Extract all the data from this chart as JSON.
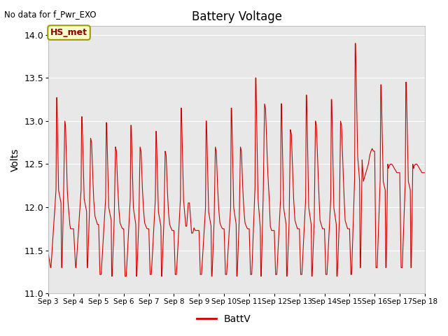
{
  "title": "Battery Voltage",
  "ylabel": "Volts",
  "top_left_text": "No data for f_Pwr_EXO",
  "legend_label": "BattV",
  "ylim": [
    11.0,
    14.1
  ],
  "yticks": [
    11.0,
    11.5,
    12.0,
    12.5,
    13.0,
    13.5,
    14.0
  ],
  "plot_bg_color": "#e8e8e8",
  "fig_bg_color": "#ffffff",
  "line_color": "#cc0000",
  "annotation_box_color": "#ffffcc",
  "annotation_text": "HS_met",
  "annotation_border_color": "#999900",
  "x_tick_labels": [
    "Sep 3",
    "Sep 4",
    "Sep 5",
    "Sep 6",
    "Sep 7",
    "Sep 8",
    "Sep 9",
    "Sep 10",
    "Sep 11",
    "Sep 12",
    "Sep 13",
    "Sep 14",
    "Sep 15",
    "Sep 16",
    "Sep 17",
    "Sep 18"
  ],
  "x_tick_positions": [
    0,
    1,
    2,
    3,
    4,
    5,
    6,
    7,
    8,
    9,
    10,
    11,
    12,
    13,
    14,
    15
  ],
  "keypoints_x": [
    0.0,
    0.08,
    0.1,
    0.3,
    0.32,
    0.34,
    0.4,
    0.5,
    0.52,
    0.54,
    0.6,
    0.65,
    0.68,
    0.72,
    0.75,
    0.78,
    0.85,
    0.88,
    0.9,
    0.99,
    1.0,
    1.08,
    1.1,
    1.3,
    1.32,
    1.34,
    1.42,
    1.52,
    1.54,
    1.56,
    1.63,
    1.68,
    1.72,
    1.76,
    1.8,
    1.85,
    1.9,
    1.95,
    1.99,
    2.0,
    2.05,
    2.1,
    2.28,
    2.3,
    2.32,
    2.4,
    2.5,
    2.52,
    2.54,
    2.62,
    2.67,
    2.71,
    2.75,
    2.8,
    2.85,
    2.9,
    2.95,
    2.99,
    3.0,
    3.05,
    3.1,
    3.26,
    3.28,
    3.3,
    3.38,
    3.48,
    3.5,
    3.52,
    3.6,
    3.65,
    3.69,
    3.73,
    3.78,
    3.83,
    3.88,
    3.93,
    3.99,
    4.0,
    4.05,
    4.1,
    4.26,
    4.28,
    4.3,
    4.38,
    4.48,
    4.5,
    4.52,
    4.6,
    4.65,
    4.69,
    4.73,
    4.78,
    4.83,
    4.88,
    4.93,
    4.99,
    5.0,
    5.05,
    5.1,
    5.26,
    5.28,
    5.3,
    5.38,
    5.47,
    5.49,
    5.51,
    5.57,
    5.6,
    5.62,
    5.7,
    5.75,
    5.8,
    5.85,
    5.9,
    5.95,
    5.99,
    6.0,
    6.05,
    6.1,
    6.26,
    6.28,
    6.3,
    6.38,
    6.48,
    6.5,
    6.52,
    6.6,
    6.65,
    6.69,
    6.73,
    6.78,
    6.83,
    6.88,
    6.93,
    6.99,
    7.0,
    7.05,
    7.1,
    7.26,
    7.28,
    7.3,
    7.38,
    7.48,
    7.5,
    7.52,
    7.6,
    7.65,
    7.69,
    7.73,
    7.78,
    7.83,
    7.88,
    7.93,
    7.99,
    8.0,
    8.05,
    8.1,
    8.23,
    8.25,
    8.27,
    8.35,
    8.44,
    8.46,
    8.48,
    8.56,
    8.61,
    8.65,
    8.69,
    8.74,
    8.79,
    8.84,
    8.89,
    8.94,
    8.99,
    9.0,
    9.05,
    9.1,
    9.25,
    9.27,
    9.29,
    9.37,
    9.47,
    9.49,
    9.51,
    9.59,
    9.64,
    9.68,
    9.72,
    9.77,
    9.82,
    9.87,
    9.92,
    9.99,
    10.0,
    10.05,
    10.1,
    10.25,
    10.27,
    10.29,
    10.37,
    10.47,
    10.49,
    10.51,
    10.59,
    10.64,
    10.68,
    10.72,
    10.77,
    10.82,
    10.87,
    10.92,
    10.99,
    11.0,
    11.05,
    11.1,
    11.25,
    11.27,
    11.29,
    11.37,
    11.47,
    11.49,
    11.51,
    11.59,
    11.64,
    11.68,
    11.72,
    11.77,
    11.82,
    11.87,
    11.92,
    11.99,
    12.0,
    12.05,
    12.08,
    12.2,
    12.22,
    12.24,
    12.32,
    12.4,
    12.42,
    12.44,
    12.5,
    12.55,
    12.6,
    12.65,
    12.7,
    12.75,
    12.8,
    12.85,
    12.9,
    12.95,
    12.99,
    13.0,
    13.05,
    13.1,
    13.22,
    13.24,
    13.26,
    13.34,
    13.42,
    13.44,
    13.46,
    13.52,
    13.55,
    13.58,
    13.62,
    13.65,
    13.68,
    13.73,
    13.78,
    13.83,
    13.88,
    13.93,
    13.99,
    14.0,
    14.05,
    14.1,
    14.22,
    14.24,
    14.26,
    14.34,
    14.42,
    14.44,
    14.46,
    14.52,
    14.55,
    14.58,
    14.62,
    14.65,
    14.68,
    14.73,
    14.78,
    14.83,
    14.88,
    14.93,
    14.99
  ],
  "keypoints_y": [
    11.45,
    11.3,
    11.3,
    12.2,
    13.27,
    13.27,
    12.2,
    12.05,
    11.3,
    11.3,
    12.1,
    13.0,
    12.95,
    12.5,
    12.2,
    12.05,
    11.8,
    11.75,
    11.75,
    11.75,
    11.75,
    11.3,
    11.3,
    12.2,
    13.05,
    13.05,
    12.1,
    11.95,
    11.3,
    11.3,
    11.9,
    12.8,
    12.75,
    12.4,
    12.1,
    11.9,
    11.85,
    11.8,
    11.8,
    11.8,
    11.22,
    11.22,
    12.1,
    12.98,
    12.98,
    12.0,
    11.85,
    11.2,
    11.2,
    11.85,
    12.7,
    12.65,
    12.3,
    12.0,
    11.82,
    11.78,
    11.75,
    11.75,
    11.75,
    11.2,
    11.2,
    12.1,
    12.95,
    12.95,
    12.0,
    11.8,
    11.2,
    11.2,
    11.82,
    12.7,
    12.65,
    12.3,
    12.0,
    11.82,
    11.78,
    11.75,
    11.75,
    11.75,
    11.22,
    11.22,
    12.1,
    12.88,
    12.88,
    11.95,
    11.78,
    11.2,
    11.2,
    11.82,
    12.65,
    12.6,
    12.25,
    11.95,
    11.8,
    11.76,
    11.73,
    11.73,
    11.73,
    11.22,
    11.22,
    12.1,
    13.15,
    13.15,
    12.1,
    11.78,
    11.78,
    11.78,
    12.05,
    12.05,
    12.05,
    11.7,
    11.7,
    11.76,
    11.73,
    11.73,
    11.73,
    11.73,
    11.73,
    11.22,
    11.22,
    12.0,
    13.0,
    13.0,
    11.95,
    11.78,
    11.2,
    11.2,
    11.82,
    12.7,
    12.65,
    12.3,
    12.0,
    11.82,
    11.78,
    11.75,
    11.75,
    11.75,
    11.22,
    11.22,
    12.0,
    13.15,
    13.15,
    12.0,
    11.8,
    11.2,
    11.2,
    11.82,
    12.7,
    12.65,
    12.3,
    12.0,
    11.82,
    11.78,
    11.75,
    11.75,
    11.75,
    11.22,
    11.22,
    12.2,
    13.5,
    13.5,
    12.1,
    11.78,
    11.2,
    11.2,
    12.15,
    13.2,
    13.15,
    12.8,
    12.4,
    12.15,
    11.78,
    11.73,
    11.73,
    11.73,
    11.73,
    11.22,
    11.22,
    12.1,
    13.2,
    13.2,
    12.0,
    11.8,
    11.2,
    11.2,
    11.82,
    12.9,
    12.85,
    12.5,
    12.1,
    11.85,
    11.8,
    11.75,
    11.75,
    11.75,
    11.22,
    11.22,
    12.1,
    13.3,
    13.3,
    12.0,
    11.8,
    11.2,
    11.2,
    11.82,
    13.0,
    12.95,
    12.6,
    12.2,
    11.85,
    11.8,
    11.75,
    11.75,
    11.75,
    11.22,
    11.22,
    12.1,
    13.25,
    13.25,
    12.0,
    11.8,
    11.2,
    11.2,
    11.82,
    13.0,
    12.95,
    12.6,
    12.2,
    11.85,
    11.8,
    11.75,
    11.75,
    11.75,
    11.22,
    11.22,
    12.3,
    13.9,
    13.9,
    12.6,
    12.3,
    11.3,
    11.3,
    12.55,
    12.3,
    12.35,
    12.4,
    12.45,
    12.5,
    12.6,
    12.65,
    12.68,
    12.65,
    12.65,
    12.65,
    11.3,
    11.3,
    12.3,
    13.42,
    13.42,
    12.3,
    12.2,
    11.3,
    11.3,
    12.5,
    12.45,
    12.48,
    12.5,
    12.5,
    12.5,
    12.48,
    12.45,
    12.43,
    12.4,
    12.4,
    12.4,
    12.4,
    11.3,
    11.3,
    12.3,
    13.45,
    13.45,
    12.3,
    12.2,
    11.3,
    11.3,
    12.5,
    12.45,
    12.48,
    12.5,
    12.5,
    12.5,
    12.48,
    12.45,
    12.43,
    12.4,
    12.4,
    12.4
  ]
}
